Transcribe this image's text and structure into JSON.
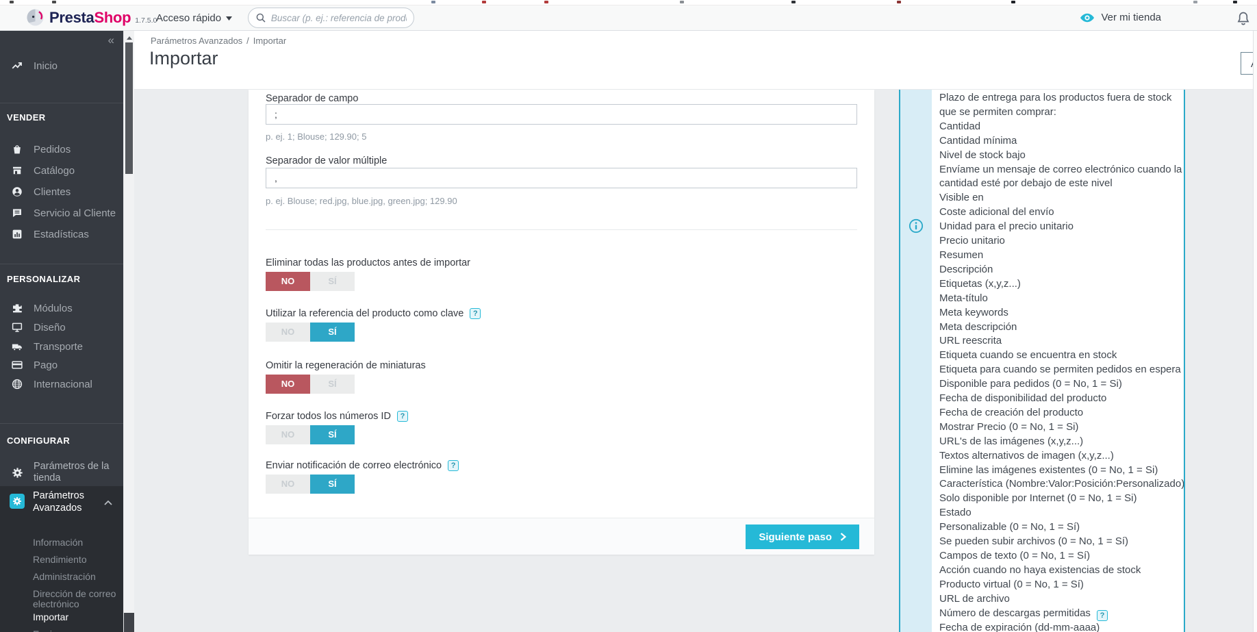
{
  "header": {
    "brand": {
      "primary": "Presta",
      "secondary": "Shop",
      "version": "1.7.5.0"
    },
    "quick_access_label": "Acceso rápido",
    "search_placeholder": "Buscar (p. ej.: referencia de producto, n",
    "view_shop_label": "Ver mi tienda"
  },
  "sidebar": {
    "collapse_glyph": "«",
    "home": {
      "label": "Inicio",
      "icon": "trending-up"
    },
    "sections": [
      {
        "title": "VENDER",
        "items": [
          {
            "label": "Pedidos",
            "icon": "orders"
          },
          {
            "label": "Catálogo",
            "icon": "catalog"
          },
          {
            "label": "Clientes",
            "icon": "customers"
          },
          {
            "label": "Servicio al Cliente",
            "icon": "customer-service"
          },
          {
            "label": "Estadísticas",
            "icon": "stats"
          }
        ]
      },
      {
        "title": "PERSONALIZAR",
        "items": [
          {
            "label": "Módulos",
            "icon": "modules"
          },
          {
            "label": "Diseño",
            "icon": "design"
          },
          {
            "label": "Transporte",
            "icon": "shipping"
          },
          {
            "label": "Pago",
            "icon": "payment"
          },
          {
            "label": "Internacional",
            "icon": "international"
          }
        ]
      }
    ],
    "configure": {
      "title": "CONFIGURAR",
      "shop_params": {
        "label": "Parámetros de la tienda",
        "icon": "gear"
      },
      "advanced": {
        "label": "Parámetros Avanzados",
        "icon": "advanced-gear",
        "expanded": true,
        "subitems": [
          "Información",
          "Rendimiento",
          "Administración",
          "Dirección de correo electrónico",
          "Importar",
          "Equipo"
        ],
        "active_subitem": "Importar"
      }
    }
  },
  "page": {
    "breadcrumb": {
      "part1": "Parámetros Avanzados",
      "separator": "/",
      "part2": "Importar"
    },
    "title": "Importar",
    "help_button_label": "Ayuda"
  },
  "form": {
    "fields": [
      {
        "label": "Separador de campo",
        "value": ";",
        "hint": "p. ej. 1; Blouse; 129.90; 5"
      },
      {
        "label": "Separador de valor múltiple",
        "value": ",",
        "hint": "p. ej. Blouse; red.jpg, blue.jpg, green.jpg; 129.90"
      }
    ],
    "toggle_no_label": "NO",
    "toggle_si_label": "SÍ",
    "toggles": [
      {
        "label": "Eliminar todas las productos antes de importar",
        "help": false,
        "active": "no"
      },
      {
        "label": "Utilizar la referencia del producto como clave",
        "help": true,
        "active": "si"
      },
      {
        "label": "Omitir la regeneración de miniaturas",
        "help": false,
        "active": "no"
      },
      {
        "label": "Forzar todos los números ID",
        "help": true,
        "active": "si"
      },
      {
        "label": "Enviar notificación de correo electrónico",
        "help": true,
        "active": "si"
      }
    ],
    "next_button_label": "Siguiente paso"
  },
  "info_panel": {
    "icon": "info-icon",
    "help_icon_line_index": 36,
    "lines": [
      "Plazo de entrega para los productos fuera de stock",
      "que se permiten comprar:",
      "Cantidad",
      "Cantidad mínima",
      "Nivel de stock bajo",
      "Envíame un mensaje de correo electrónico cuando la",
      "cantidad esté por debajo de este nivel",
      "Visible en",
      "Coste adicional del envío",
      "Unidad para el precio unitario",
      "Precio unitario",
      "Resumen",
      "Descripción",
      "Etiquetas (x,y,z...)",
      "Meta-título",
      "Meta keywords",
      "Meta descripción",
      "URL reescrita",
      "Etiqueta cuando se encuentra en stock",
      "Etiqueta para cuando se permiten pedidos en espera",
      "Disponible para pedidos (0 = No, 1 = Si)",
      "Fecha de disponibilidad del producto",
      "Fecha de creación del producto",
      "Mostrar Precio (0 = No, 1 = Si)",
      "URL's de las imágenes (x,y,z...)",
      "Textos alternativos de imagen (x,y,z...)",
      "Elimine las imágenes existentes (0 = No, 1 = Si)",
      "Característica (Nombre:Valor:Posición:Personalizado)",
      "Solo disponible por Internet (0 = No, 1 = Si)",
      "Estado",
      "Personalizable (0 = No, 1 = Sí)",
      "Se pueden subir archivos (0 = No, 1 = Sí)",
      "Campos de texto (0 = No, 1 = Sí)",
      "Acción cuando no haya existencias de stock",
      "Producto virtual (0 = No, 1 = Sí)",
      "URL de archivo",
      "Número de descargas permitidas",
      "Fecha de expiración (dd-mm-aaaa)"
    ]
  },
  "colors": {
    "accent_teal": "#25b9d7",
    "toggle_red": "#b9575f",
    "toggle_blue": "#2ea7c7",
    "brand_pink": "#df0067",
    "brand_navy": "#1d2354",
    "sidebar_bg": "#363a41"
  }
}
